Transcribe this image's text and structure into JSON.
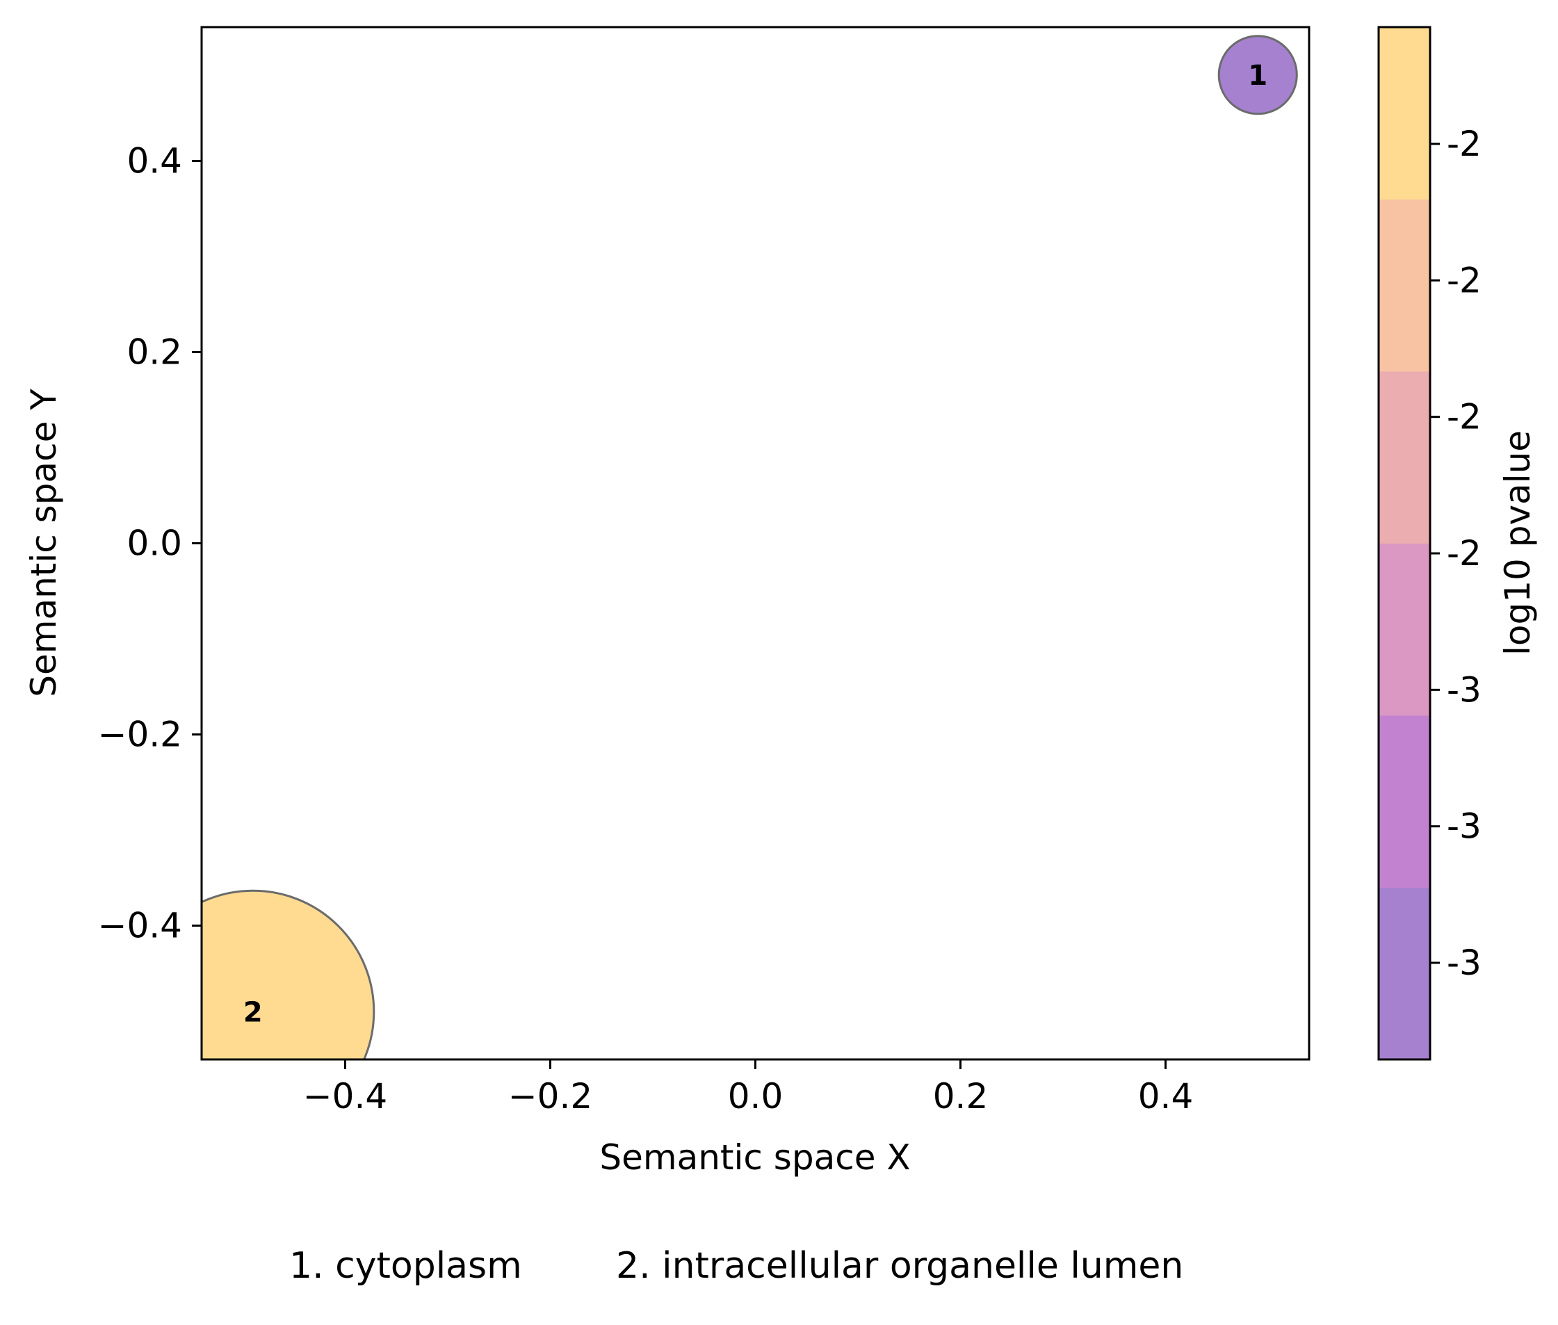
{
  "chart_data": {
    "type": "scatter",
    "xlabel": "Semantic space X",
    "ylabel": "Semantic space Y",
    "xlim": [
      -0.54,
      0.54
    ],
    "ylim": [
      -0.54,
      0.54
    ],
    "xticks": [
      -0.4,
      -0.2,
      0.0,
      0.2,
      0.4
    ],
    "yticks": [
      -0.4,
      -0.2,
      0.0,
      0.2,
      0.4
    ],
    "xtick_labels": [
      "−0.4",
      "−0.2",
      "0.0",
      "0.2",
      "0.4"
    ],
    "ytick_labels": [
      "−0.4",
      "−0.2",
      "0.0",
      "0.2",
      "0.4"
    ],
    "grid": false,
    "points": [
      {
        "label": "1",
        "term": "cytoplasm",
        "x": 0.49,
        "y": 0.49,
        "size": 0.038,
        "color": "#a581cf"
      },
      {
        "label": "2",
        "term": "intracellular organelle lumen",
        "x": -0.49,
        "y": -0.49,
        "size": 0.118,
        "color": "#ffdb92"
      }
    ],
    "colorbar": {
      "label": "log10 pvalue",
      "bands": [
        "#a581cf",
        "#c382cf",
        "#da98c3",
        "#ebadb0",
        "#f8c3a3",
        "#ffdb92"
      ],
      "tick_labels": [
        "-3",
        "-3",
        "-3",
        "-2",
        "-2",
        "-2",
        "-2"
      ]
    },
    "footer_legend": [
      "1. cytoplasm",
      "2. intracellular organelle lumen"
    ]
  }
}
